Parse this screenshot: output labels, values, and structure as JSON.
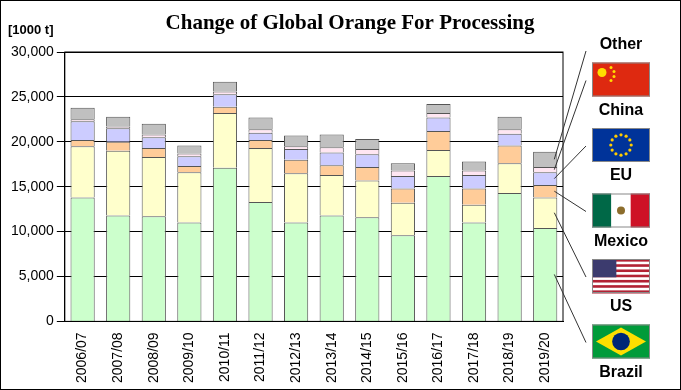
{
  "chart_data": {
    "type": "bar",
    "title": "Change of Global Orange For Processing",
    "y_label": "[1000 t]",
    "categories": [
      "2006/07",
      "2007/08",
      "2008/09",
      "2009/10",
      "2010/11",
      "2011/12",
      "2012/13",
      "2013/14",
      "2014/15",
      "2015/16",
      "2016/17",
      "2017/18",
      "2018/19",
      "2019/20"
    ],
    "series": [
      {
        "name": "Brazil",
        "color": "#ccffcc",
        "values": [
          13800,
          11800,
          11700,
          11000,
          17100,
          13300,
          11000,
          11800,
          11600,
          9600,
          16200,
          11000,
          14300,
          10400
        ]
      },
      {
        "name": "US",
        "color": "#ffffcc",
        "values": [
          5700,
          7200,
          6600,
          5600,
          6100,
          6000,
          5500,
          4500,
          4100,
          3600,
          2900,
          2000,
          3300,
          3400
        ]
      },
      {
        "name": "Mexico",
        "color": "#ffcc99",
        "values": [
          700,
          1000,
          1000,
          700,
          700,
          900,
          1500,
          1100,
          1500,
          1600,
          2100,
          1800,
          2000,
          1400
        ]
      },
      {
        "name": "EU",
        "color": "#ccccff",
        "values": [
          2100,
          1500,
          1200,
          1100,
          1400,
          800,
          1200,
          1400,
          1400,
          1400,
          1500,
          1500,
          1300,
          1400
        ]
      },
      {
        "name": "China",
        "color": "#ffe6f2",
        "values": [
          200,
          200,
          300,
          300,
          300,
          400,
          300,
          600,
          600,
          600,
          500,
          500,
          500,
          600
        ]
      },
      {
        "name": "Other",
        "color": "#c0c0c0",
        "values": [
          1300,
          1100,
          1200,
          900,
          1100,
          1300,
          1200,
          1400,
          1100,
          800,
          1000,
          1000,
          1400,
          1700
        ]
      }
    ],
    "stacked": true,
    "ylim": [
      0,
      30000
    ],
    "yticks": [
      0,
      {
        "value": 5000,
        "label": "5,000"
      },
      {
        "value": 10000,
        "label": "10,000"
      },
      {
        "value": 15000,
        "label": "15,000"
      },
      {
        "value": 20000,
        "label": "20,000"
      },
      {
        "value": 25000,
        "label": "25,000"
      },
      {
        "value": 30000,
        "label": "30,000"
      }
    ],
    "grid": true,
    "legend": "right"
  }
}
